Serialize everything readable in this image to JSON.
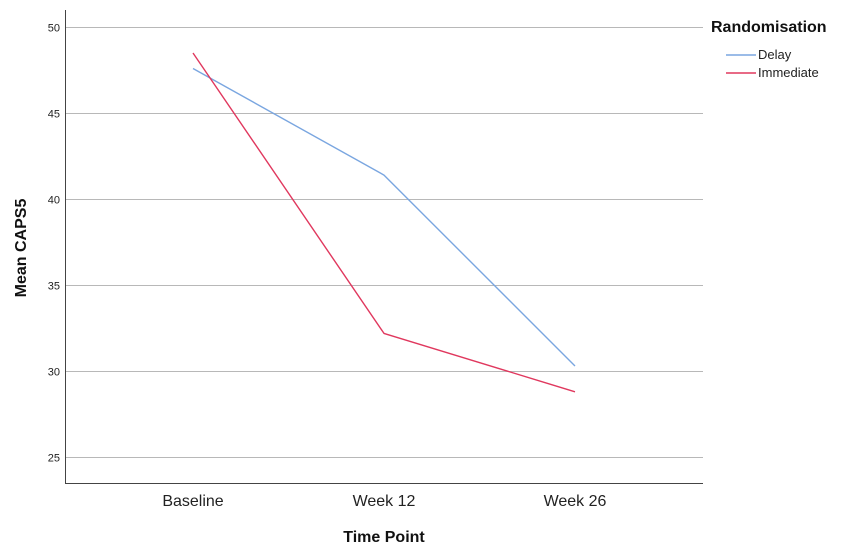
{
  "chart_data": {
    "type": "line",
    "categories": [
      "Baseline",
      "Week 12",
      "Week 26"
    ],
    "series": [
      {
        "name": "Delay",
        "values": [
          47.6,
          41.4,
          30.3
        ],
        "color": "#7aa6e0"
      },
      {
        "name": "Immediate",
        "values": [
          48.5,
          32.2,
          28.8
        ],
        "color": "#e0385e"
      }
    ],
    "xlabel": "Time Point",
    "ylabel": "Mean CAPS5",
    "ylim": [
      23.5,
      51
    ],
    "yticks": [
      25,
      30,
      35,
      40,
      45,
      50
    ],
    "grid": true,
    "legend": {
      "title": "Randomisation",
      "placement": "top-right"
    }
  }
}
